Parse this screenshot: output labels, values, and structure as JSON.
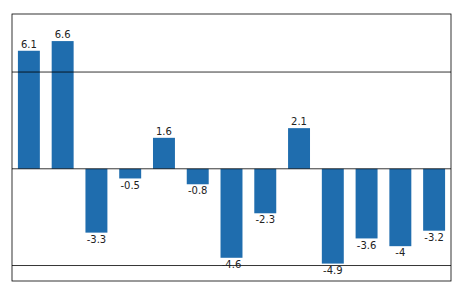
{
  "chart_data": {
    "type": "bar",
    "categories": [
      null,
      null,
      null,
      null,
      null,
      null,
      null,
      null,
      null,
      null,
      null,
      null,
      null
    ],
    "values": [
      6.1,
      6.6,
      -3.3,
      -0.5,
      1.6,
      -0.8,
      -4.6,
      -2.3,
      2.1,
      -4.9,
      -3.6,
      -4.0,
      -3.2
    ],
    "color": "#1F6DAE",
    "ylim": [
      -5.8,
      8.0
    ],
    "yticks": [
      -5,
      0,
      5
    ],
    "grid": true,
    "tick_labels": false,
    "data_labels": true
  }
}
